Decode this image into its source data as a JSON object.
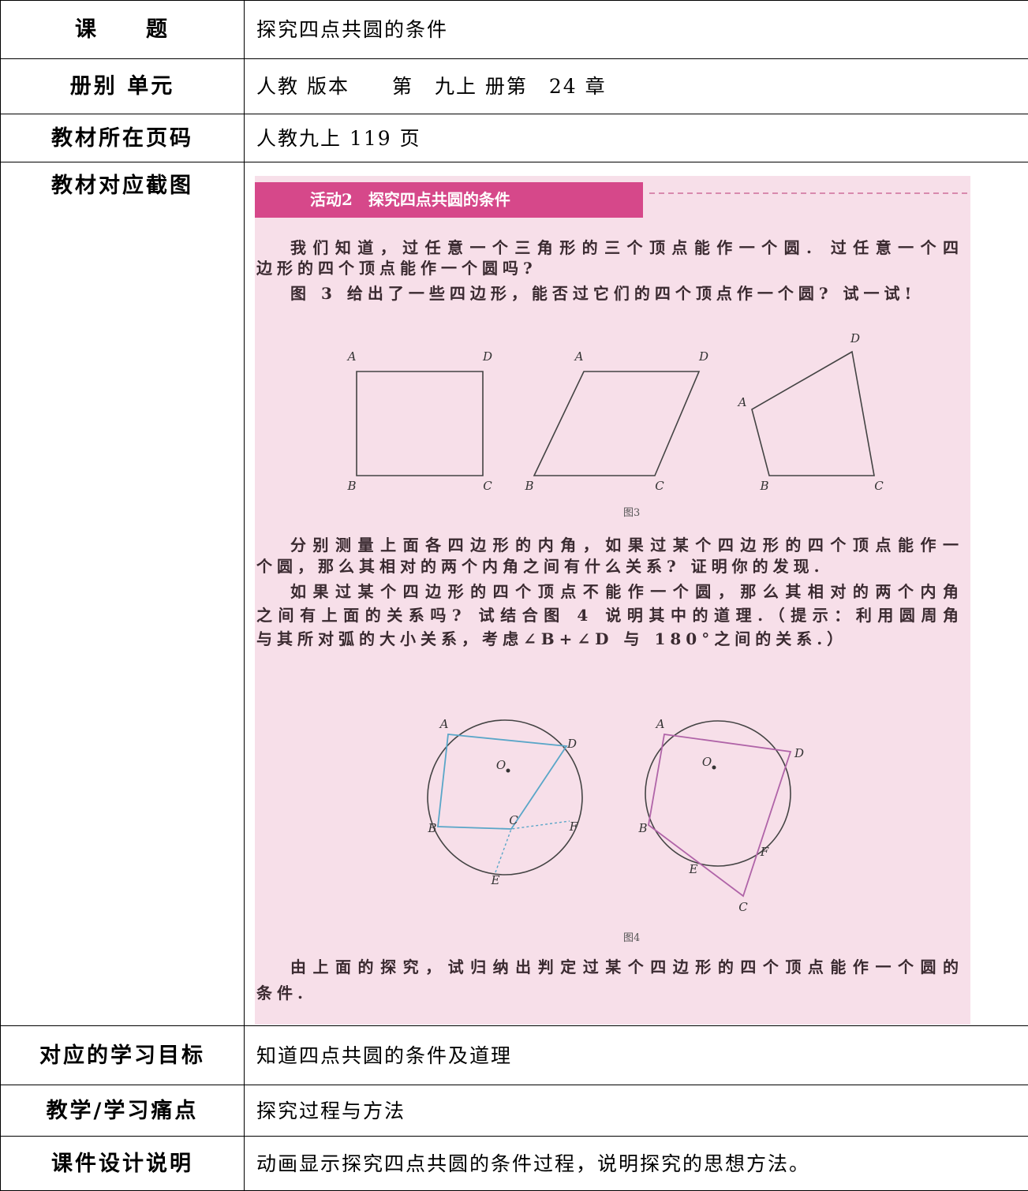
{
  "document": {
    "rows": [
      {
        "label": "课　　题",
        "content": "探究四点共圆的条件"
      },
      {
        "label": "册别 单元",
        "content": "人教 版本　　第　九上 册第　24 章"
      },
      {
        "label": "教材所在页码",
        "content": "人教九上 119 页"
      },
      {
        "label": "教材对应截图",
        "textbook": {
          "heading": "活动2　探究四点共圆的条件",
          "paragraphs_a": [
            [
              "我们知道，过任意一个三角形的三个顶点能作一个圆. 过任意一个四",
              "边形的四个顶点能作一个圆吗?"
            ],
            [
              "图 3 给出了一些四边形，能否过它们的四个顶点作一个圆? 试一试!"
            ]
          ],
          "figure3": {
            "caption": "图3",
            "shapes": [
              [
                "A",
                "D",
                "B",
                "C"
              ],
              [
                "A",
                "D",
                "B",
                "C"
              ],
              [
                "D",
                "A",
                "B",
                "C"
              ]
            ]
          },
          "paragraphs_b": [
            [
              "分别测量上面各四边形的内角，如果过某个四边形的四个顶点能作一",
              "个圆，那么其相对的两个内角之间有什么关系? 证明你的发现."
            ],
            [
              "如果过某个四边形的四个顶点不能作一个圆，那么其相对的两个内角",
              "之间有上面的关系吗? 试结合图 4 说明其中的道理.（提示：利用圆周角",
              "与其所对弧的大小关系，考虑∠B+∠D 与 180°之间的关系.）"
            ]
          ],
          "figure4": {
            "caption": "图4",
            "shapes": [
              [
                "O",
                "A",
                "D",
                "B",
                "C",
                "F",
                "E"
              ],
              [
                "O",
                "A",
                "D",
                "B",
                "E",
                "F",
                "C"
              ]
            ]
          },
          "paragraphs_c": [
            [
              "由上面的探究，试归纳出判定过某个四边形的四个顶点能作一个圆的",
              "条件."
            ]
          ]
        }
      },
      {
        "label": "对应的学习目标",
        "content": "知道四点共圆的条件及道理"
      },
      {
        "label": "教学/学习痛点",
        "content": "探究过程与方法"
      },
      {
        "label": "课件设计说明",
        "content": "动画显示探究四点共圆的条件过程，说明探究的思想方法。"
      }
    ]
  }
}
